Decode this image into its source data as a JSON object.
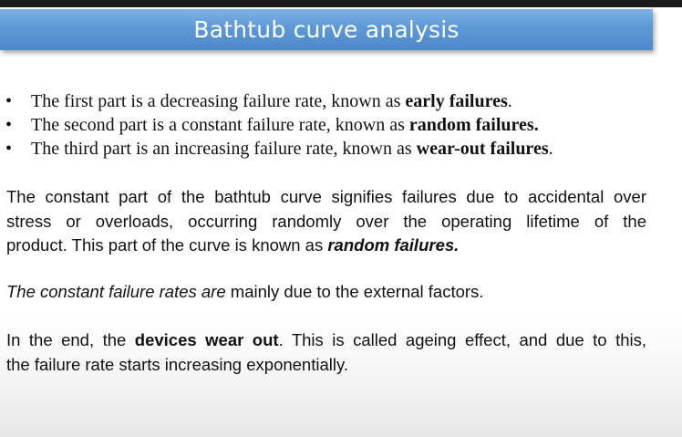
{
  "slide": {
    "title": "Bathtub curve analysis"
  },
  "bullets": [
    {
      "marker": "•",
      "before": "The first part is a decreasing failure rate, known as ",
      "bold": "early failures",
      "after": "."
    },
    {
      "marker": "•",
      "before": "The second part is a constant failure rate, known as ",
      "bold": "random failures.",
      "after": ""
    },
    {
      "marker": "•",
      "before": "The third part is an increasing failure rate, known as ",
      "bold": "wear-out failures",
      "after": "."
    }
  ],
  "paragraph1": {
    "line1": "The constant part of the bathtub curve signifies failures due to accidental over",
    "line2": "stress or overloads, occurring randomly over the operating lifetime of the",
    "line3_before": "product. This part of the curve is known as ",
    "line3_bold_italic": "random failures."
  },
  "paragraph2": {
    "italic": "The constant failure rates are",
    "rest": " mainly due to the external factors."
  },
  "paragraph3": {
    "before": "In the end, the ",
    "bold": "devices wear out",
    "line1_after": ". This is called ageing effect, and due to this,",
    "line2": "the failure rate starts increasing exponentially."
  }
}
